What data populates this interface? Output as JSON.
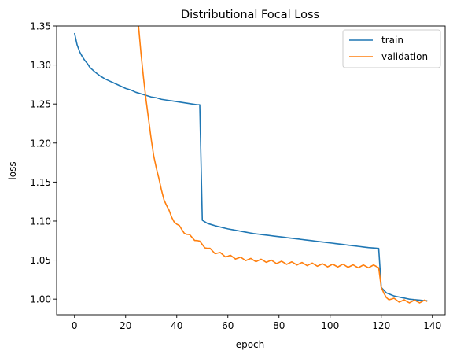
{
  "chart_data": {
    "type": "line",
    "title": "Distributional Focal Loss",
    "xlabel": "epoch",
    "ylabel": "loss",
    "xlim": [
      -7,
      145
    ],
    "ylim": [
      0.98,
      1.35
    ],
    "xticks": [
      0,
      20,
      40,
      60,
      80,
      100,
      120,
      140
    ],
    "yticks": [
      1.0,
      1.05,
      1.1,
      1.15,
      1.2,
      1.25,
      1.3,
      1.35
    ],
    "xtick_labels": [
      "0",
      "20",
      "40",
      "60",
      "80",
      "100",
      "120",
      "140"
    ],
    "ytick_labels": [
      "1.00",
      "1.05",
      "1.10",
      "1.15",
      "1.20",
      "1.25",
      "1.30",
      "1.35"
    ],
    "legend_position": "top-right",
    "series": [
      {
        "name": "train",
        "color": "#1f77b4",
        "keypoints": [
          [
            0,
            1.341
          ],
          [
            1,
            1.326
          ],
          [
            2,
            1.317
          ],
          [
            3,
            1.311
          ],
          [
            4,
            1.306
          ],
          [
            5,
            1.302
          ],
          [
            6,
            1.297
          ],
          [
            7,
            1.294
          ],
          [
            8,
            1.291
          ],
          [
            10,
            1.286
          ],
          [
            12,
            1.282
          ],
          [
            14,
            1.279
          ],
          [
            16,
            1.276
          ],
          [
            18,
            1.273
          ],
          [
            20,
            1.27
          ],
          [
            22,
            1.268
          ],
          [
            24,
            1.265
          ],
          [
            26,
            1.263
          ],
          [
            28,
            1.261
          ],
          [
            30,
            1.259
          ],
          [
            32,
            1.258
          ],
          [
            34,
            1.256
          ],
          [
            36,
            1.255
          ],
          [
            38,
            1.254
          ],
          [
            40,
            1.253
          ],
          [
            42,
            1.252
          ],
          [
            44,
            1.251
          ],
          [
            46,
            1.25
          ],
          [
            48,
            1.249
          ],
          [
            49,
            1.249
          ],
          [
            50,
            1.101
          ],
          [
            52,
            1.097
          ],
          [
            55,
            1.094
          ],
          [
            60,
            1.09
          ],
          [
            65,
            1.087
          ],
          [
            70,
            1.084
          ],
          [
            75,
            1.082
          ],
          [
            80,
            1.08
          ],
          [
            85,
            1.078
          ],
          [
            90,
            1.076
          ],
          [
            95,
            1.074
          ],
          [
            100,
            1.072
          ],
          [
            105,
            1.07
          ],
          [
            110,
            1.068
          ],
          [
            115,
            1.066
          ],
          [
            119,
            1.065
          ],
          [
            120,
            1.015
          ],
          [
            122,
            1.008
          ],
          [
            125,
            1.004
          ],
          [
            128,
            1.002
          ],
          [
            131,
            1.0
          ],
          [
            134,
            0.999
          ],
          [
            137,
            0.998
          ],
          [
            138,
            0.998
          ]
        ]
      },
      {
        "name": "validation",
        "color": "#ff7f0e",
        "keypoints": [
          [
            24,
            1.37
          ],
          [
            25,
            1.35
          ],
          [
            26,
            1.315
          ],
          [
            27,
            1.285
          ],
          [
            28,
            1.255
          ],
          [
            29,
            1.228
          ],
          [
            30,
            1.205
          ],
          [
            31,
            1.185
          ],
          [
            32,
            1.168
          ],
          [
            33,
            1.153
          ],
          [
            34,
            1.14
          ],
          [
            35,
            1.129
          ],
          [
            36,
            1.12
          ],
          [
            37,
            1.112
          ],
          [
            38,
            1.105
          ],
          [
            40,
            1.096
          ],
          [
            42,
            1.089
          ],
          [
            44,
            1.083
          ],
          [
            46,
            1.079
          ],
          [
            48,
            1.075
          ],
          [
            50,
            1.07
          ],
          [
            52,
            1.065
          ],
          [
            55,
            1.06
          ],
          [
            58,
            1.057
          ],
          [
            60,
            1.055
          ],
          [
            65,
            1.052
          ],
          [
            70,
            1.05
          ],
          [
            75,
            1.049
          ],
          [
            80,
            1.047
          ],
          [
            85,
            1.046
          ],
          [
            90,
            1.045
          ],
          [
            95,
            1.044
          ],
          [
            100,
            1.043
          ],
          [
            105,
            1.043
          ],
          [
            110,
            1.042
          ],
          [
            115,
            1.042
          ],
          [
            119,
            1.042
          ],
          [
            120,
            1.015
          ],
          [
            121,
            1.006
          ],
          [
            122,
            1.002
          ],
          [
            124,
            1.0
          ],
          [
            127,
            0.998
          ],
          [
            130,
            0.997
          ],
          [
            134,
            0.997
          ],
          [
            138,
            0.997
          ]
        ],
        "jitter": 0.0018
      }
    ]
  }
}
